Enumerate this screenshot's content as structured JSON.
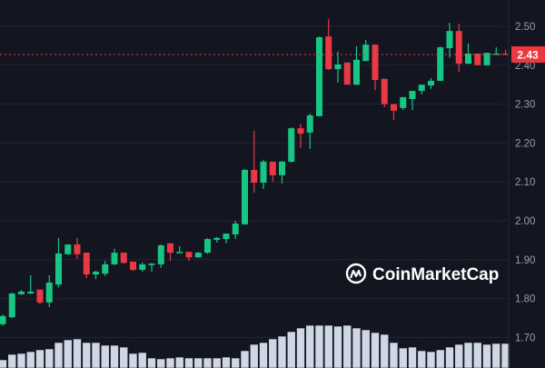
{
  "chart_data": {
    "type": "candlestick",
    "title": "",
    "xlabel": "",
    "ylabel": "",
    "ylim": [
      1.67,
      2.57
    ],
    "y_ticks": [
      "2.50",
      "2.40",
      "2.30",
      "2.20",
      "2.10",
      "2.00",
      "1.90",
      "1.80",
      "1.70"
    ],
    "grid": true,
    "current_price": 2.43,
    "current_price_label": "2.43",
    "colors": {
      "background": "#131520",
      "up": "#16c784",
      "down": "#ea3943",
      "grid": "#23252f",
      "volume": "#cfd6e4",
      "axis_text": "#9a9ea8"
    },
    "candles": [
      [
        1.734,
        1.759,
        1.73,
        1.755
      ],
      [
        1.752,
        1.815,
        1.75,
        1.813
      ],
      [
        1.811,
        1.822,
        1.81,
        1.818
      ],
      [
        1.813,
        1.86,
        1.812,
        1.818
      ],
      [
        1.823,
        1.823,
        1.785,
        1.79
      ],
      [
        1.79,
        1.86,
        1.778,
        1.841
      ],
      [
        1.836,
        1.956,
        1.829,
        1.916
      ],
      [
        1.914,
        1.94,
        1.913,
        1.939
      ],
      [
        1.939,
        1.956,
        1.902,
        1.914
      ],
      [
        1.918,
        1.918,
        1.853,
        1.862
      ],
      [
        1.862,
        1.872,
        1.85,
        1.869
      ],
      [
        1.864,
        1.897,
        1.858,
        1.888
      ],
      [
        1.888,
        1.928,
        1.886,
        1.918
      ],
      [
        1.918,
        1.918,
        1.889,
        1.892
      ],
      [
        1.895,
        1.895,
        1.871,
        1.874
      ],
      [
        1.874,
        1.893,
        1.869,
        1.888
      ],
      [
        1.886,
        1.891,
        1.869,
        1.89
      ],
      [
        1.888,
        1.939,
        1.879,
        1.937
      ],
      [
        1.942,
        1.942,
        1.897,
        1.918
      ],
      [
        1.918,
        1.935,
        1.917,
        1.92
      ],
      [
        1.92,
        1.92,
        1.897,
        1.906
      ],
      [
        1.906,
        1.92,
        1.905,
        1.918
      ],
      [
        1.918,
        1.955,
        1.915,
        1.953
      ],
      [
        1.951,
        1.958,
        1.944,
        1.956
      ],
      [
        1.953,
        1.967,
        1.942,
        1.967
      ],
      [
        1.965,
        2.0,
        1.953,
        1.993
      ],
      [
        1.991,
        2.133,
        1.99,
        2.131
      ],
      [
        2.131,
        2.231,
        2.072,
        2.098
      ],
      [
        2.098,
        2.157,
        2.082,
        2.152
      ],
      [
        2.152,
        2.152,
        2.1,
        2.117
      ],
      [
        2.117,
        2.154,
        2.096,
        2.152
      ],
      [
        2.152,
        2.24,
        2.15,
        2.238
      ],
      [
        2.238,
        2.25,
        2.187,
        2.224
      ],
      [
        2.227,
        2.276,
        2.185,
        2.271
      ],
      [
        2.269,
        2.474,
        2.268,
        2.472
      ],
      [
        2.474,
        2.519,
        2.388,
        2.39
      ],
      [
        2.39,
        2.435,
        2.355,
        2.402
      ],
      [
        2.407,
        2.407,
        2.35,
        2.35
      ],
      [
        2.35,
        2.449,
        2.349,
        2.414
      ],
      [
        2.411,
        2.465,
        2.41,
        2.453
      ],
      [
        2.453,
        2.453,
        2.336,
        2.362
      ],
      [
        2.365,
        2.365,
        2.292,
        2.3
      ],
      [
        2.3,
        2.3,
        2.259,
        2.283
      ],
      [
        2.29,
        2.318,
        2.285,
        2.318
      ],
      [
        2.313,
        2.334,
        2.285,
        2.334
      ],
      [
        2.334,
        2.35,
        2.325,
        2.35
      ],
      [
        2.348,
        2.367,
        2.339,
        2.36
      ],
      [
        2.36,
        2.448,
        2.359,
        2.446
      ],
      [
        2.444,
        2.509,
        2.42,
        2.488
      ],
      [
        2.488,
        2.507,
        2.383,
        2.404
      ],
      [
        2.404,
        2.456,
        2.403,
        2.43
      ],
      [
        2.43,
        2.43,
        2.4,
        2.4
      ],
      [
        2.4,
        2.432,
        2.399,
        2.432
      ],
      [
        2.428,
        2.446,
        2.427,
        2.43
      ],
      [
        2.43,
        2.44,
        2.426,
        2.427
      ]
    ],
    "candle_fields": [
      "open",
      "high",
      "low",
      "close"
    ],
    "volume_relative": [
      9,
      15,
      16,
      18,
      20,
      21,
      28,
      31,
      32,
      28,
      28,
      25,
      25,
      23,
      16,
      17,
      11,
      10,
      11,
      12,
      11,
      11,
      11,
      11,
      12,
      11,
      19,
      26,
      28,
      32,
      35,
      40,
      44,
      47,
      47,
      47,
      46,
      47,
      44,
      42,
      39,
      37,
      28,
      22,
      23,
      19,
      18,
      20,
      23,
      26,
      28,
      28,
      26,
      27,
      27
    ]
  },
  "watermark": {
    "text": "CoinMarketCap",
    "icon": "coinmarketcap-logo-icon"
  }
}
